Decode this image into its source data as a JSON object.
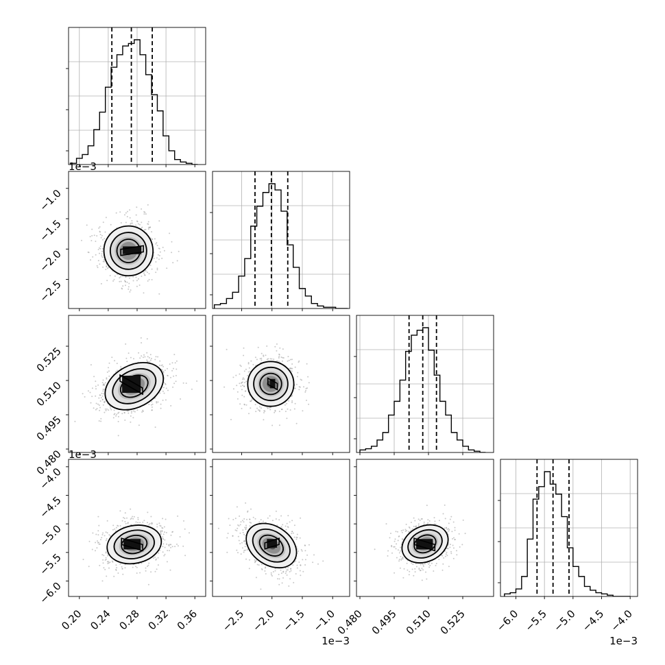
{
  "chart_data": {
    "type": "corner",
    "params": [
      {
        "ticks": [
          "0.20",
          "0.24",
          "0.28",
          "0.32",
          "0.36"
        ],
        "tick_values": [
          0.2,
          0.24,
          0.28,
          0.32,
          0.36
        ],
        "range": [
          0.185,
          0.375
        ],
        "exponent": ""
      },
      {
        "ticks": [
          "−2.5",
          "−2.0",
          "−1.5",
          "−1.0"
        ],
        "tick_values": [
          -2.5,
          -2.0,
          -1.5,
          -1.0
        ],
        "range": [
          -2.98,
          -0.72
        ],
        "exponent": "1e−3"
      },
      {
        "ticks": [
          "0.480",
          "0.495",
          "0.510",
          "0.525"
        ],
        "tick_values": [
          0.48,
          0.495,
          0.51,
          0.525
        ],
        "range": [
          0.4785,
          0.5385
        ],
        "exponent": ""
      },
      {
        "ticks": [
          "−6.0",
          "−5.5",
          "−5.0",
          "−4.5",
          "−4.0"
        ],
        "tick_values": [
          -6.0,
          -5.5,
          -5.0,
          -4.5,
          -4.0
        ],
        "range": [
          -6.27,
          -3.87
        ],
        "exponent": "1e−3"
      }
    ],
    "quantiles": [
      [
        0.245,
        0.272,
        0.301
      ],
      [
        -2.28,
        -2.01,
        -1.74
      ],
      [
        0.5015,
        0.5075,
        0.5135
      ],
      [
        -5.63,
        -5.35,
        -5.07
      ]
    ],
    "histograms": [
      {
        "bins": [
          0.188,
          0.196,
          0.204,
          0.212,
          0.22,
          0.228,
          0.236,
          0.244,
          0.252,
          0.26,
          0.268,
          0.276,
          0.284,
          0.292,
          0.3,
          0.308,
          0.316,
          0.324,
          0.332,
          0.34,
          0.348,
          0.356,
          0.364
        ],
        "counts": [
          0.01,
          0.05,
          0.08,
          0.15,
          0.28,
          0.42,
          0.62,
          0.78,
          0.88,
          0.95,
          0.97,
          1.0,
          0.88,
          0.72,
          0.56,
          0.43,
          0.23,
          0.11,
          0.04,
          0.02,
          0.01,
          0.0
        ]
      },
      {
        "bins": [
          -2.95,
          -2.85,
          -2.75,
          -2.65,
          -2.55,
          -2.45,
          -2.35,
          -2.25,
          -2.15,
          -2.05,
          -1.95,
          -1.85,
          -1.75,
          -1.65,
          -1.55,
          -1.45,
          -1.35,
          -1.25,
          -1.15,
          -1.05,
          -0.95,
          -0.85,
          -0.75
        ],
        "counts": [
          0.03,
          0.04,
          0.08,
          0.13,
          0.26,
          0.4,
          0.66,
          0.82,
          0.93,
          1.0,
          0.95,
          0.78,
          0.51,
          0.33,
          0.16,
          0.1,
          0.04,
          0.02,
          0.01,
          0.01,
          0.0,
          0.0
        ]
      },
      {
        "bins": [
          0.48,
          0.4825,
          0.485,
          0.4875,
          0.49,
          0.4925,
          0.495,
          0.4975,
          0.5,
          0.5025,
          0.505,
          0.5075,
          0.51,
          0.5125,
          0.515,
          0.5175,
          0.52,
          0.5225,
          0.525,
          0.5275,
          0.53,
          0.5325,
          0.535
        ],
        "counts": [
          0.02,
          0.03,
          0.05,
          0.1,
          0.16,
          0.3,
          0.41,
          0.58,
          0.81,
          0.94,
          0.98,
          1.0,
          0.82,
          0.62,
          0.41,
          0.3,
          0.16,
          0.1,
          0.05,
          0.02,
          0.01,
          0.0
        ]
      },
      {
        "bins": [
          -6.2,
          -6.1,
          -6.0,
          -5.9,
          -5.8,
          -5.7,
          -5.6,
          -5.5,
          -5.4,
          -5.3,
          -5.2,
          -5.1,
          -5.0,
          -4.9,
          -4.8,
          -4.7,
          -4.6,
          -4.5,
          -4.4,
          -4.3,
          -4.2,
          -4.1,
          -4.0
        ],
        "counts": [
          0.02,
          0.03,
          0.06,
          0.16,
          0.46,
          0.78,
          0.88,
          1.0,
          0.9,
          0.82,
          0.64,
          0.39,
          0.24,
          0.16,
          0.08,
          0.05,
          0.03,
          0.02,
          0.01,
          0.0,
          0.0,
          0.0
        ]
      }
    ],
    "pairs": [
      {
        "x": 0,
        "y": 1,
        "center": [
          0.268,
          -2.03
        ],
        "spread": [
          0.034,
          0.41
        ],
        "angle": -6,
        "core": [
          [
            0.263,
            -2.05
          ],
          [
            0.283,
            -1.99
          ]
        ]
      },
      {
        "x": 0,
        "y": 2,
        "center": [
          0.276,
          0.5075
        ],
        "spread": [
          0.043,
          0.0092
        ],
        "angle": -28,
        "core": [
          [
            0.262,
            0.5112
          ],
          [
            0.282,
            0.5055
          ]
        ]
      },
      {
        "x": 1,
        "y": 2,
        "center": [
          -2.02,
          0.5085
        ],
        "spread": [
          0.38,
          0.0098
        ],
        "angle": 0,
        "core": [
          [
            -2.0,
            0.5098
          ],
          [
            -1.98,
            0.5075
          ]
        ]
      },
      {
        "x": 0,
        "y": 3,
        "center": [
          0.276,
          -5.36
        ],
        "spread": [
          0.038,
          0.33
        ],
        "angle": -12,
        "core": [
          [
            0.264,
            -5.3
          ],
          [
            0.282,
            -5.41
          ]
        ]
      },
      {
        "x": 1,
        "y": 3,
        "center": [
          -2.01,
          -5.38
        ],
        "spread": [
          0.45,
          0.34
        ],
        "angle": 34,
        "core": [
          [
            -2.05,
            -5.38
          ],
          [
            -1.95,
            -5.3
          ]
        ]
      },
      {
        "x": 2,
        "y": 3,
        "center": [
          0.5085,
          -5.35
        ],
        "spread": [
          0.0105,
          0.31
        ],
        "angle": -25,
        "core": [
          [
            0.5055,
            -5.3
          ],
          [
            0.511,
            -5.41
          ]
        ]
      }
    ],
    "grid": true
  }
}
